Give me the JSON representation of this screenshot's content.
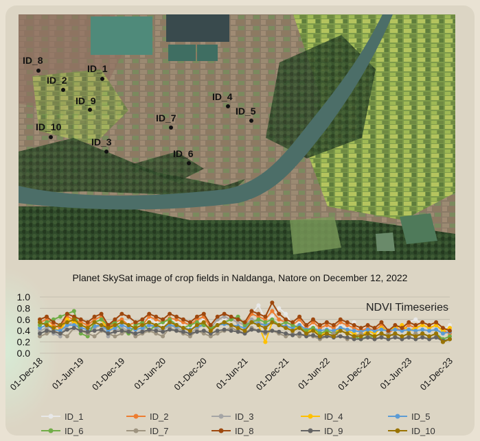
{
  "image": {
    "caption": "Planet SkySat image of crop fields in Naldanga, Natore on December 12, 2022",
    "points": [
      {
        "id": "ID_8"
      },
      {
        "id": "ID_1"
      },
      {
        "id": "ID_2"
      },
      {
        "id": "ID_9"
      },
      {
        "id": "ID_4"
      },
      {
        "id": "ID_5"
      },
      {
        "id": "ID_10"
      },
      {
        "id": "ID_7"
      },
      {
        "id": "ID_3"
      },
      {
        "id": "ID_6"
      }
    ]
  },
  "chart_data": {
    "type": "line",
    "title": "NDVI Timeseries",
    "xlabel": "",
    "ylabel": "",
    "ylim": [
      0.0,
      1.0
    ],
    "yticks": [
      "0.0",
      "0.2",
      "0.4",
      "0.6",
      "0.8",
      "1.0"
    ],
    "xticks": [
      "01-Dec-18",
      "01-Jun-19",
      "01-Dec-19",
      "01-Jun-20",
      "01-Dec-20",
      "01-Jun-21",
      "01-Dec-21",
      "01-Jun-22",
      "01-Dec-22",
      "01-Jun-23",
      "01-Dec-23"
    ],
    "grid": true,
    "legend": "bottom",
    "x": [
      "2018-12",
      "2019-01",
      "2019-02",
      "2019-03",
      "2019-04",
      "2019-05",
      "2019-06",
      "2019-07",
      "2019-08",
      "2019-09",
      "2019-10",
      "2019-11",
      "2019-12",
      "2020-01",
      "2020-02",
      "2020-03",
      "2020-04",
      "2020-05",
      "2020-06",
      "2020-07",
      "2020-08",
      "2020-09",
      "2020-10",
      "2020-11",
      "2020-12",
      "2021-01",
      "2021-02",
      "2021-03",
      "2021-04",
      "2021-05",
      "2021-06",
      "2021-07",
      "2021-08",
      "2021-09",
      "2021-10",
      "2021-11",
      "2021-12",
      "2022-01",
      "2022-02",
      "2022-03",
      "2022-04",
      "2022-05",
      "2022-06",
      "2022-07",
      "2022-08",
      "2022-09",
      "2022-10",
      "2022-11",
      "2022-12",
      "2023-01",
      "2023-02",
      "2023-03",
      "2023-04",
      "2023-05",
      "2023-06",
      "2023-07",
      "2023-08",
      "2023-09",
      "2023-10",
      "2023-11",
      "2023-12"
    ],
    "series": [
      {
        "name": "ID_1",
        "color": "#e8e8e8",
        "values": [
          0.45,
          0.55,
          0.5,
          0.4,
          0.6,
          0.65,
          0.5,
          0.45,
          0.55,
          0.62,
          0.4,
          0.5,
          0.6,
          0.55,
          0.45,
          0.5,
          0.6,
          0.55,
          0.5,
          0.6,
          0.58,
          0.5,
          0.45,
          0.55,
          0.6,
          0.5,
          0.55,
          0.6,
          0.65,
          0.6,
          0.55,
          0.7,
          0.85,
          0.6,
          0.65,
          0.8,
          0.7,
          0.5,
          0.55,
          0.45,
          0.5,
          0.35,
          0.45,
          0.4,
          0.5,
          0.45,
          0.55,
          0.4,
          0.5,
          0.3,
          0.45,
          0.4,
          0.5,
          0.45,
          0.55,
          0.6,
          0.5,
          0.45,
          0.55,
          0.4,
          0.5
        ]
      },
      {
        "name": "ID_2",
        "color": "#ed7d31",
        "values": [
          0.55,
          0.6,
          0.5,
          0.45,
          0.65,
          0.6,
          0.55,
          0.5,
          0.6,
          0.65,
          0.45,
          0.55,
          0.6,
          0.5,
          0.55,
          0.5,
          0.65,
          0.6,
          0.55,
          0.62,
          0.6,
          0.55,
          0.5,
          0.6,
          0.65,
          0.45,
          0.6,
          0.65,
          0.6,
          0.55,
          0.5,
          0.7,
          0.65,
          0.6,
          0.75,
          0.6,
          0.55,
          0.5,
          0.6,
          0.45,
          0.55,
          0.45,
          0.5,
          0.45,
          0.55,
          0.5,
          0.45,
          0.4,
          0.45,
          0.4,
          0.5,
          0.35,
          0.45,
          0.4,
          0.5,
          0.45,
          0.5,
          0.45,
          0.5,
          0.4,
          0.35
        ]
      },
      {
        "name": "ID_3",
        "color": "#a5a5a5",
        "values": [
          0.4,
          0.45,
          0.35,
          0.3,
          0.5,
          0.55,
          0.4,
          0.35,
          0.45,
          0.5,
          0.3,
          0.4,
          0.45,
          0.4,
          0.35,
          0.4,
          0.5,
          0.45,
          0.4,
          0.5,
          0.45,
          0.4,
          0.35,
          0.45,
          0.5,
          0.45,
          0.6,
          0.65,
          0.6,
          0.55,
          0.5,
          0.6,
          0.55,
          0.5,
          0.55,
          0.5,
          0.45,
          0.4,
          0.45,
          0.35,
          0.4,
          0.3,
          0.35,
          0.3,
          0.4,
          0.35,
          0.3,
          0.3,
          0.35,
          0.3,
          0.35,
          0.3,
          0.35,
          0.3,
          0.35,
          0.3,
          0.35,
          0.3,
          0.35,
          0.2,
          0.25
        ]
      },
      {
        "name": "ID_4",
        "color": "#ffc000",
        "values": [
          0.5,
          0.55,
          0.45,
          0.4,
          0.6,
          0.55,
          0.5,
          0.45,
          0.55,
          0.6,
          0.4,
          0.5,
          0.55,
          0.5,
          0.45,
          0.5,
          0.55,
          0.5,
          0.45,
          0.55,
          0.5,
          0.45,
          0.4,
          0.5,
          0.55,
          0.4,
          0.5,
          0.55,
          0.5,
          0.45,
          0.4,
          0.55,
          0.5,
          0.2,
          0.55,
          0.5,
          0.45,
          0.4,
          0.5,
          0.35,
          0.45,
          0.3,
          0.4,
          0.35,
          0.45,
          0.4,
          0.35,
          0.3,
          0.4,
          0.35,
          0.45,
          0.4,
          0.45,
          0.5,
          0.4,
          0.45,
          0.5,
          0.45,
          0.5,
          0.4,
          0.45
        ]
      },
      {
        "name": "ID_5",
        "color": "#5b9bd5",
        "values": [
          0.45,
          0.5,
          0.42,
          0.4,
          0.5,
          0.5,
          0.45,
          0.42,
          0.48,
          0.5,
          0.4,
          0.45,
          0.5,
          0.45,
          0.42,
          0.45,
          0.5,
          0.48,
          0.45,
          0.5,
          0.48,
          0.45,
          0.42,
          0.48,
          0.5,
          0.45,
          0.5,
          0.52,
          0.5,
          0.48,
          0.45,
          0.55,
          0.52,
          0.5,
          0.55,
          0.5,
          0.48,
          0.45,
          0.5,
          0.42,
          0.45,
          0.4,
          0.42,
          0.4,
          0.45,
          0.42,
          0.4,
          0.38,
          0.42,
          0.4,
          0.42,
          0.4,
          0.42,
          0.4,
          0.42,
          0.4,
          0.42,
          0.4,
          0.42,
          0.35,
          0.38
        ]
      },
      {
        "name": "ID_6",
        "color": "#70ad47",
        "values": [
          0.5,
          0.55,
          0.6,
          0.65,
          0.7,
          0.75,
          0.35,
          0.3,
          0.55,
          0.6,
          0.5,
          0.55,
          0.4,
          0.35,
          0.5,
          0.55,
          0.4,
          0.5,
          0.55,
          0.6,
          0.5,
          0.45,
          0.5,
          0.55,
          0.5,
          0.45,
          0.5,
          0.55,
          0.6,
          0.65,
          0.5,
          0.55,
          0.6,
          0.55,
          0.6,
          0.5,
          0.55,
          0.5,
          0.45,
          0.4,
          0.45,
          0.35,
          0.4,
          0.35,
          0.4,
          0.35,
          0.3,
          0.25,
          0.3,
          0.3,
          0.35,
          0.3,
          0.35,
          0.3,
          0.35,
          0.3,
          0.35,
          0.3,
          0.35,
          0.25,
          0.3
        ]
      },
      {
        "name": "ID_7",
        "color": "#9e9480",
        "values": [
          0.3,
          0.35,
          0.4,
          0.35,
          0.3,
          0.45,
          0.4,
          0.35,
          0.3,
          0.4,
          0.35,
          0.3,
          0.35,
          0.4,
          0.3,
          0.35,
          0.4,
          0.35,
          0.3,
          0.45,
          0.4,
          0.35,
          0.3,
          0.4,
          0.35,
          0.3,
          0.35,
          0.4,
          0.45,
          0.4,
          0.35,
          0.45,
          0.4,
          0.35,
          0.4,
          0.35,
          0.3,
          0.35,
          0.3,
          0.35,
          0.3,
          0.25,
          0.3,
          0.35,
          0.3,
          0.25,
          0.3,
          0.35,
          0.3,
          0.25,
          0.3,
          0.35,
          0.3,
          0.25,
          0.3,
          0.35,
          0.3,
          0.25,
          0.3,
          0.2,
          0.25
        ]
      },
      {
        "name": "ID_8",
        "color": "#9e480e",
        "values": [
          0.6,
          0.65,
          0.55,
          0.5,
          0.7,
          0.65,
          0.6,
          0.55,
          0.65,
          0.7,
          0.5,
          0.6,
          0.7,
          0.65,
          0.55,
          0.6,
          0.7,
          0.65,
          0.6,
          0.7,
          0.65,
          0.6,
          0.55,
          0.65,
          0.7,
          0.5,
          0.65,
          0.7,
          0.65,
          0.6,
          0.55,
          0.75,
          0.7,
          0.65,
          0.9,
          0.7,
          0.6,
          0.55,
          0.65,
          0.5,
          0.6,
          0.5,
          0.55,
          0.5,
          0.6,
          0.55,
          0.5,
          0.45,
          0.5,
          0.45,
          0.55,
          0.4,
          0.5,
          0.45,
          0.55,
          0.5,
          0.55,
          0.5,
          0.55,
          0.45,
          0.4
        ]
      },
      {
        "name": "ID_9",
        "color": "#636363",
        "values": [
          0.35,
          0.4,
          0.38,
          0.35,
          0.42,
          0.45,
          0.4,
          0.38,
          0.4,
          0.42,
          0.35,
          0.38,
          0.4,
          0.38,
          0.35,
          0.38,
          0.42,
          0.4,
          0.38,
          0.42,
          0.4,
          0.38,
          0.35,
          0.38,
          0.4,
          0.35,
          0.4,
          0.42,
          0.4,
          0.38,
          0.35,
          0.42,
          0.4,
          0.38,
          0.4,
          0.38,
          0.35,
          0.32,
          0.35,
          0.3,
          0.32,
          0.28,
          0.3,
          0.28,
          0.3,
          0.28,
          0.25,
          0.25,
          0.28,
          0.25,
          0.28,
          0.25,
          0.28,
          0.25,
          0.28,
          0.25,
          0.28,
          0.25,
          0.28,
          0.22,
          0.25
        ]
      },
      {
        "name": "ID_10",
        "color": "#997300",
        "values": [
          0.55,
          0.5,
          0.45,
          0.5,
          0.55,
          0.6,
          0.5,
          0.45,
          0.55,
          0.5,
          0.45,
          0.5,
          0.55,
          0.5,
          0.45,
          0.5,
          0.55,
          0.5,
          0.45,
          0.55,
          0.5,
          0.45,
          0.4,
          0.5,
          0.55,
          0.4,
          0.5,
          0.55,
          0.5,
          0.45,
          0.4,
          0.55,
          0.5,
          0.45,
          0.55,
          0.5,
          0.45,
          0.4,
          0.45,
          0.35,
          0.4,
          0.3,
          0.35,
          0.3,
          0.4,
          0.35,
          0.3,
          0.3,
          0.35,
          0.3,
          0.35,
          0.3,
          0.35,
          0.3,
          0.35,
          0.3,
          0.35,
          0.3,
          0.35,
          0.2,
          0.25
        ]
      }
    ]
  }
}
